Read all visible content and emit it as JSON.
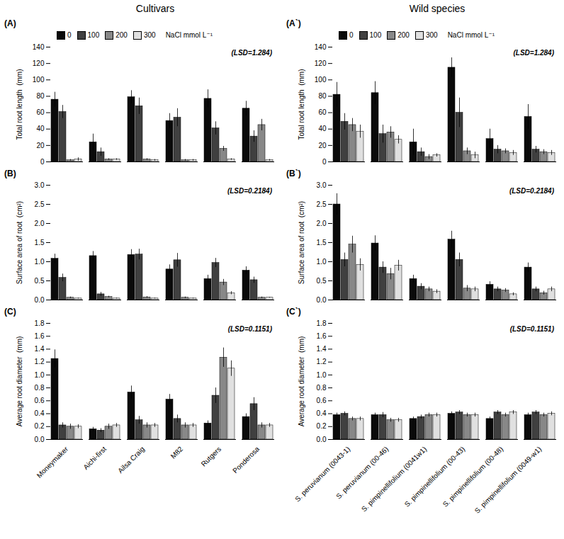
{
  "chart_data": [
    {
      "type": "bar",
      "title": "Cultivars",
      "ylabel": "Total root length  (mm)",
      "annotations": [
        "(A)",
        "(LSD=1.284)",
        "NaCl mmol L⁻¹"
      ],
      "categories": [
        "Moneymaker",
        "Aichi-first",
        "Ailsa Craig",
        "M82",
        "Rutgers",
        "Ponderosa"
      ],
      "series": [
        {
          "name": "0",
          "color": "#0a0a0a",
          "values": [
            76,
            24,
            79,
            50,
            77,
            65
          ],
          "errors": [
            9,
            10,
            8,
            9,
            11,
            9
          ]
        },
        {
          "name": "100",
          "color": "#404040",
          "values": [
            61,
            12,
            68,
            54,
            41,
            31
          ],
          "errors": [
            8,
            5,
            10,
            11,
            8,
            7
          ]
        },
        {
          "name": "200",
          "color": "#888888",
          "values": [
            2,
            3,
            3,
            2,
            16,
            45
          ],
          "errors": [
            1,
            1,
            1,
            1,
            3,
            7
          ]
        },
        {
          "name": "300",
          "color": "#e0e0e0",
          "values": [
            3,
            3,
            2,
            2,
            3,
            2
          ],
          "errors": [
            2,
            1,
            1,
            1,
            1,
            1
          ]
        }
      ],
      "ylim": [
        0,
        140
      ],
      "yticks": [
        0,
        20,
        40,
        60,
        80,
        100,
        120,
        140
      ],
      "grid": false,
      "legend": "upper left",
      "tick_labels": "y"
    },
    {
      "type": "bar",
      "title": "Wild species",
      "ylabel": "Total root length  (mm)",
      "annotations": [
        "(A`)",
        "(LSD=1.284)",
        "NaCl mmol L⁻¹"
      ],
      "categories": [
        "S. peruvianum (0043-1)",
        "S. peruvianum (00-46)",
        "S. pimpinellifolium (0041w1)",
        "S. pimpinellifolium (00-43)",
        "S. pimpinellifolium (00-48)",
        "S. pimpinellifolium (0049-w1)"
      ],
      "series": [
        {
          "name": "0",
          "color": "#0a0a0a",
          "values": [
            82,
            84,
            24,
            115,
            28,
            55
          ],
          "errors": [
            15,
            14,
            16,
            12,
            12,
            15
          ]
        },
        {
          "name": "100",
          "color": "#404040",
          "values": [
            49,
            34,
            12,
            60,
            15,
            15
          ],
          "errors": [
            10,
            11,
            5,
            18,
            5,
            4
          ]
        },
        {
          "name": "200",
          "color": "#888888",
          "values": [
            45,
            36,
            6,
            13,
            13,
            12
          ],
          "errors": [
            8,
            7,
            3,
            4,
            3,
            3
          ]
        },
        {
          "name": "300",
          "color": "#e0e0e0",
          "values": [
            37,
            27,
            8,
            8,
            11,
            11
          ],
          "errors": [
            8,
            5,
            2,
            4,
            3,
            3
          ]
        }
      ],
      "ylim": [
        0,
        140
      ],
      "yticks": [
        0,
        20,
        40,
        60,
        80,
        100,
        120,
        140
      ],
      "grid": false,
      "legend": "upper left",
      "tick_labels": "y"
    },
    {
      "type": "bar",
      "ylabel": "Surface area of root  (cm²)",
      "annotations": [
        "(B)",
        "(LSD=0.2184)"
      ],
      "categories": [
        "Moneymaker",
        "Aichi-first",
        "Ailsa Craig",
        "M82",
        "Rutgers",
        "Ponderosa"
      ],
      "series": [
        {
          "name": "0",
          "color": "#0a0a0a",
          "values": [
            1.08,
            1.15,
            1.18,
            0.8,
            0.55,
            0.77
          ],
          "errors": [
            0.12,
            0.12,
            0.14,
            0.12,
            0.1,
            0.1
          ]
        },
        {
          "name": "100",
          "color": "#404040",
          "values": [
            0.58,
            0.15,
            1.19,
            1.04,
            0.97,
            0.52
          ],
          "errors": [
            0.1,
            0.05,
            0.14,
            0.18,
            0.12,
            0.08
          ]
        },
        {
          "name": "200",
          "color": "#888888",
          "values": [
            0.06,
            0.08,
            0.07,
            0.06,
            0.46,
            0.06
          ],
          "errors": [
            0.02,
            0.02,
            0.02,
            0.02,
            0.08,
            0.02
          ]
        },
        {
          "name": "300",
          "color": "#e0e0e0",
          "values": [
            0.04,
            0.04,
            0.04,
            0.04,
            0.18,
            0.06
          ],
          "errors": [
            0.01,
            0.01,
            0.01,
            0.01,
            0.04,
            0.01
          ]
        }
      ],
      "ylim": [
        0.0,
        3.0
      ],
      "yticks": [
        {
          "value": 0,
          "label": "0.0"
        },
        0.5,
        {
          "value": 1,
          "label": "1.0"
        },
        1.5,
        {
          "value": 2,
          "label": "2.0"
        },
        2.5,
        {
          "value": 3,
          "label": "3.0"
        }
      ],
      "grid": false,
      "legend": false,
      "tick_labels": "y"
    },
    {
      "type": "bar",
      "ylabel": "Surface area of root  (cm²)",
      "annotations": [
        "(B`)",
        "(LSD=0.2184)"
      ],
      "categories": [
        "S. peruvianum (0043-1)",
        "S. peruvianum (00-46)",
        "S. pimpinellifolium (0041w1)",
        "S. pimpinellifolium (00-43)",
        "S. pimpinellifolium (00-48)",
        "S. pimpinellifolium (0049-w1)"
      ],
      "series": [
        {
          "name": "0",
          "color": "#0a0a0a",
          "values": [
            2.5,
            1.48,
            0.55,
            1.58,
            0.4,
            0.85
          ],
          "errors": [
            0.28,
            0.2,
            0.1,
            0.22,
            0.08,
            0.12
          ]
        },
        {
          "name": "100",
          "color": "#404040",
          "values": [
            1.05,
            0.85,
            0.35,
            1.05,
            0.28,
            0.28
          ],
          "errors": [
            0.18,
            0.15,
            0.08,
            0.18,
            0.06,
            0.06
          ]
        },
        {
          "name": "200",
          "color": "#888888",
          "values": [
            1.45,
            0.68,
            0.28,
            0.3,
            0.25,
            0.18
          ],
          "errors": [
            0.22,
            0.15,
            0.06,
            0.08,
            0.05,
            0.05
          ]
        },
        {
          "name": "300",
          "color": "#e0e0e0",
          "values": [
            0.92,
            0.9,
            0.22,
            0.28,
            0.15,
            0.28
          ],
          "errors": [
            0.16,
            0.14,
            0.05,
            0.06,
            0.04,
            0.06
          ]
        }
      ],
      "ylim": [
        0.0,
        3.0
      ],
      "yticks": [
        {
          "value": 0,
          "label": "0.0"
        },
        0.5,
        {
          "value": 1,
          "label": "1.0"
        },
        1.5,
        {
          "value": 2,
          "label": "2.0"
        },
        2.5,
        {
          "value": 3,
          "label": "3.0"
        }
      ],
      "grid": false,
      "legend": false,
      "tick_labels": "y"
    },
    {
      "type": "bar",
      "ylabel": "Average root diameter  (mm)",
      "annotations": [
        "(C)",
        "(LSD=0.1151)"
      ],
      "categories": [
        "Moneymaker",
        "Aichi-first",
        "Ailsa Craig",
        "M82",
        "Rutgers",
        "Ponderosa"
      ],
      "series": [
        {
          "name": "0",
          "color": "#0a0a0a",
          "values": [
            1.25,
            0.16,
            0.73,
            0.62,
            0.25,
            0.35
          ],
          "errors": [
            0.14,
            0.03,
            0.1,
            0.08,
            0.04,
            0.05
          ]
        },
        {
          "name": "100",
          "color": "#404040",
          "values": [
            0.22,
            0.14,
            0.3,
            0.32,
            0.68,
            0.55
          ],
          "errors": [
            0.04,
            0.03,
            0.06,
            0.06,
            0.12,
            0.1
          ]
        },
        {
          "name": "200",
          "color": "#888888",
          "values": [
            0.2,
            0.2,
            0.22,
            0.22,
            1.27,
            0.22
          ],
          "errors": [
            0.04,
            0.04,
            0.04,
            0.04,
            0.15,
            0.04
          ]
        },
        {
          "name": "300",
          "color": "#e0e0e0",
          "values": [
            0.2,
            0.22,
            0.22,
            0.22,
            1.1,
            0.22
          ],
          "errors": [
            0.03,
            0.03,
            0.03,
            0.03,
            0.12,
            0.03
          ]
        }
      ],
      "ylim": [
        0.0,
        1.8
      ],
      "yticks": [
        {
          "value": 0,
          "label": "0.0"
        },
        0.2,
        0.4,
        0.6,
        0.8,
        {
          "value": 1,
          "label": "1.0"
        },
        1.2,
        1.4,
        1.6,
        1.8
      ],
      "grid": false,
      "legend": false
    },
    {
      "type": "bar",
      "ylabel": "Average root diameter  (mm)",
      "annotations": [
        "(C`)",
        "(LSD=0.1151)"
      ],
      "categories": [
        "S. peruvianum (0043-1)",
        "S. peruvianum (00-46)",
        "S. pimpinellifolium (0041w1)",
        "S. pimpinellifolium (00-43)",
        "S. pimpinellifolium (00-48)",
        "S. pimpinellifolium (0049-w1)"
      ],
      "series": [
        {
          "name": "0",
          "color": "#0a0a0a",
          "values": [
            0.38,
            0.38,
            0.32,
            0.4,
            0.32,
            0.38
          ],
          "errors": [
            0.03,
            0.03,
            0.03,
            0.03,
            0.03,
            0.03
          ]
        },
        {
          "name": "100",
          "color": "#404040",
          "values": [
            0.4,
            0.38,
            0.35,
            0.42,
            0.42,
            0.42
          ],
          "errors": [
            0.03,
            0.04,
            0.03,
            0.03,
            0.03,
            0.03
          ]
        },
        {
          "name": "200",
          "color": "#888888",
          "values": [
            0.32,
            0.3,
            0.38,
            0.38,
            0.38,
            0.38
          ],
          "errors": [
            0.03,
            0.03,
            0.03,
            0.03,
            0.03,
            0.03
          ]
        },
        {
          "name": "300",
          "color": "#e0e0e0",
          "values": [
            0.32,
            0.3,
            0.38,
            0.38,
            0.42,
            0.4
          ],
          "errors": [
            0.03,
            0.03,
            0.03,
            0.03,
            0.03,
            0.03
          ]
        }
      ],
      "ylim": [
        0.0,
        1.8
      ],
      "yticks": [
        {
          "value": 0,
          "label": "0.0"
        },
        0.2,
        0.4,
        0.6,
        0.8,
        {
          "value": 1,
          "label": "1.0"
        },
        1.2,
        1.4,
        1.6,
        1.8
      ],
      "grid": false,
      "legend": false
    }
  ]
}
